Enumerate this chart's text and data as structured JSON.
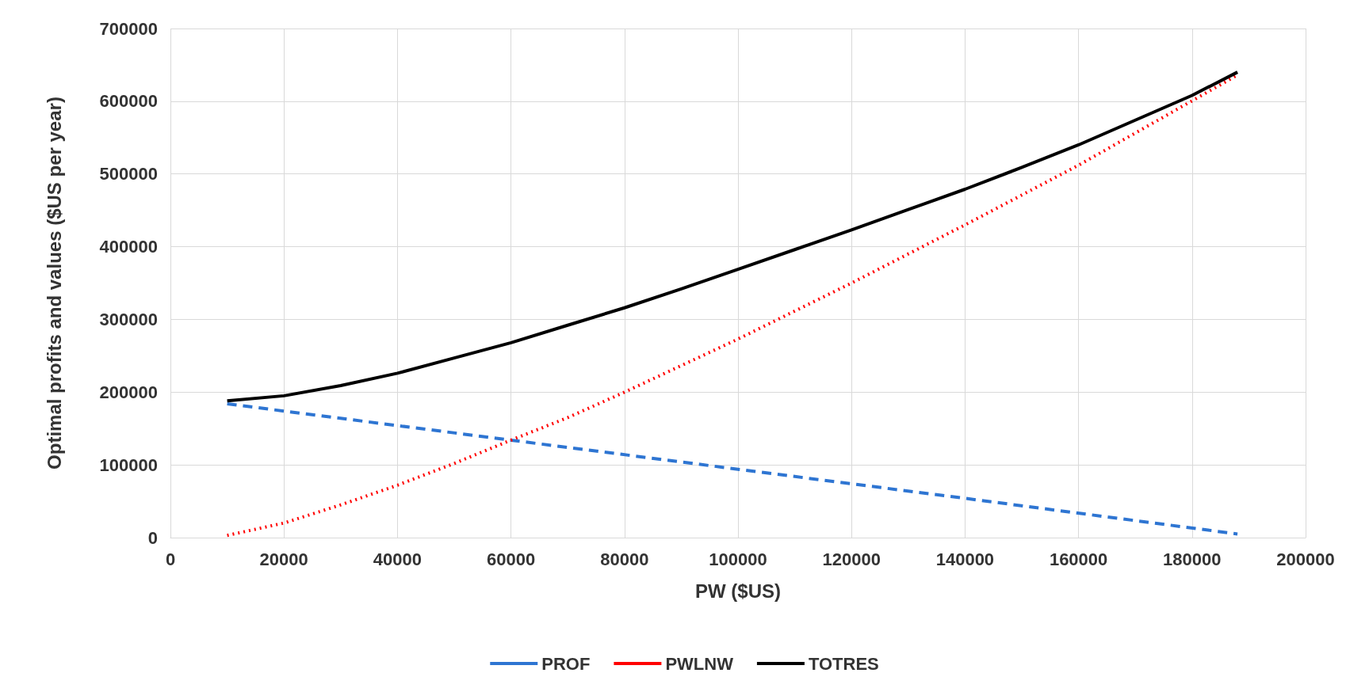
{
  "chart_data": {
    "type": "line",
    "xlabel": "PW ($US)",
    "ylabel": "Optimal profits and values ($US per year)",
    "xlim": [
      0,
      200000
    ],
    "xticks": [
      0,
      20000,
      40000,
      60000,
      80000,
      100000,
      120000,
      140000,
      160000,
      180000,
      200000
    ],
    "ylim": [
      0,
      700000
    ],
    "yticks": [
      0,
      100000,
      200000,
      300000,
      400000,
      500000,
      600000,
      700000
    ],
    "grid": true,
    "legend": "bottom",
    "marker": "none",
    "series": [
      {
        "name": "PROF",
        "color": "#2e75d2",
        "line_style": "dashed",
        "x": [
          10000,
          60000,
          100000,
          140000,
          188000
        ],
        "values": [
          184000,
          134000,
          94000,
          54000,
          5000
        ]
      },
      {
        "name": "PWLNW",
        "color": "#ff0000",
        "line_style": "dotted",
        "x": [
          10000,
          20000,
          30000,
          40000,
          50000,
          60000,
          70000,
          80000,
          100000,
          120000,
          140000,
          160000,
          188000
        ],
        "values": [
          3000,
          20000,
          45000,
          72000,
          102000,
          134000,
          165000,
          200000,
          273000,
          350000,
          430000,
          512000,
          636000
        ]
      },
      {
        "name": "TOTRES",
        "color": "#000000",
        "line_style": "solid",
        "x": [
          10000,
          20000,
          30000,
          40000,
          50000,
          60000,
          70000,
          80000,
          90000,
          100000,
          110000,
          120000,
          130000,
          140000,
          150000,
          160000,
          170000,
          180000,
          188000
        ],
        "values": [
          188000,
          195000,
          209000,
          226000,
          247000,
          268000,
          292000,
          316000,
          342000,
          369000,
          396000,
          423000,
          451000,
          479000,
          509000,
          540000,
          574000,
          608000,
          640000
        ]
      }
    ]
  }
}
